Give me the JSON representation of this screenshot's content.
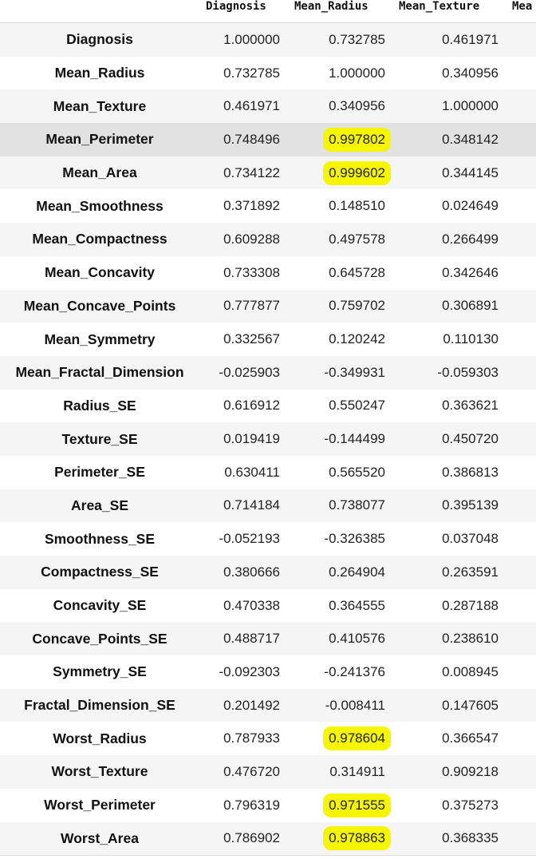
{
  "table": {
    "headers": [
      "Diagnosis",
      "Mean_Radius",
      "Mean_Texture",
      "Mea"
    ],
    "rows": [
      {
        "label": "Diagnosis",
        "values": [
          "1.000000",
          "0.732785",
          "0.461971"
        ],
        "highlight": false
      },
      {
        "label": "Mean_Radius",
        "values": [
          "0.732785",
          "1.000000",
          "0.340956"
        ],
        "highlight": false
      },
      {
        "label": "Mean_Texture",
        "values": [
          "0.461971",
          "0.340956",
          "1.000000"
        ],
        "highlight": false
      },
      {
        "label": "Mean_Perimeter",
        "values": [
          "0.748496",
          "0.997802",
          "0.348142"
        ],
        "highlight": true
      },
      {
        "label": "Mean_Area",
        "values": [
          "0.734122",
          "0.999602",
          "0.344145"
        ],
        "highlight": true
      },
      {
        "label": "Mean_Smoothness",
        "values": [
          "0.371892",
          "0.148510",
          "0.024649"
        ],
        "highlight": false
      },
      {
        "label": "Mean_Compactness",
        "values": [
          "0.609288",
          "0.497578",
          "0.266499"
        ],
        "highlight": false
      },
      {
        "label": "Mean_Concavity",
        "values": [
          "0.733308",
          "0.645728",
          "0.342646"
        ],
        "highlight": false
      },
      {
        "label": "Mean_Concave_Points",
        "values": [
          "0.777877",
          "0.759702",
          "0.306891"
        ],
        "highlight": false
      },
      {
        "label": "Mean_Symmetry",
        "values": [
          "0.332567",
          "0.120242",
          "0.110130"
        ],
        "highlight": false
      },
      {
        "label": "Mean_Fractal_Dimension",
        "values": [
          "-0.025903",
          "-0.349931",
          "-0.059303"
        ],
        "highlight": false
      },
      {
        "label": "Radius_SE",
        "values": [
          "0.616912",
          "0.550247",
          "0.363621"
        ],
        "highlight": false
      },
      {
        "label": "Texture_SE",
        "values": [
          "0.019419",
          "-0.144499",
          "0.450720"
        ],
        "highlight": false
      },
      {
        "label": "Perimeter_SE",
        "values": [
          "0.630411",
          "0.565520",
          "0.386813"
        ],
        "highlight": false
      },
      {
        "label": "Area_SE",
        "values": [
          "0.714184",
          "0.738077",
          "0.395139"
        ],
        "highlight": false
      },
      {
        "label": "Smoothness_SE",
        "values": [
          "-0.052193",
          "-0.326385",
          "0.037048"
        ],
        "highlight": false
      },
      {
        "label": "Compactness_SE",
        "values": [
          "0.380666",
          "0.264904",
          "0.263591"
        ],
        "highlight": false
      },
      {
        "label": "Concavity_SE",
        "values": [
          "0.470338",
          "0.364555",
          "0.287188"
        ],
        "highlight": false
      },
      {
        "label": "Concave_Points_SE",
        "values": [
          "0.488717",
          "0.410576",
          "0.238610"
        ],
        "highlight": false
      },
      {
        "label": "Symmetry_SE",
        "values": [
          "-0.092303",
          "-0.241376",
          "0.008945"
        ],
        "highlight": false
      },
      {
        "label": "Fractal_Dimension_SE",
        "values": [
          "0.201492",
          "-0.008411",
          "0.147605"
        ],
        "highlight": false
      },
      {
        "label": "Worst_Radius",
        "values": [
          "0.787933",
          "0.978604",
          "0.366547"
        ],
        "highlight": true
      },
      {
        "label": "Worst_Texture",
        "values": [
          "0.476720",
          "0.314911",
          "0.909218"
        ],
        "highlight": false
      },
      {
        "label": "Worst_Perimeter",
        "values": [
          "0.796319",
          "0.971555",
          "0.375273"
        ],
        "highlight": true
      },
      {
        "label": "Worst_Area",
        "values": [
          "0.786902",
          "0.978863",
          "0.368335"
        ],
        "highlight": true
      }
    ]
  },
  "colors": {
    "highlight": "#f6f600",
    "stripe": "#f5f5f5",
    "hover_row": "#e2e2e2"
  }
}
